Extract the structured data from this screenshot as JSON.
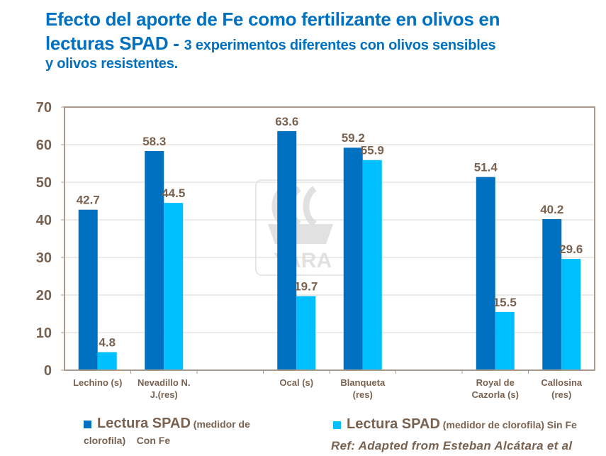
{
  "title": {
    "line1": "Efecto del aporte de Fe como fertilizante en olivos en",
    "line2_main": "lecturas SPAD - ",
    "line2_sub": "3 experimentos diferentes con olivos sensibles",
    "line3": "y olivos resistentes."
  },
  "watermark": "YARA",
  "chart_data": {
    "type": "bar",
    "title": "Efecto del aporte de Fe como fertilizante en olivos en lecturas SPAD - 3 experimentos diferentes con olivos sensibles y olivos resistentes.",
    "xlabel": "",
    "ylabel": "",
    "ylim": [
      0,
      70
    ],
    "yticks": [
      0,
      10,
      20,
      30,
      40,
      50,
      60,
      70
    ],
    "grid": true,
    "legend_position": "bottom",
    "categories": [
      "Lechino (s)",
      "Nevadillo N. J.(res)",
      "",
      "Ocal (s)",
      "Blanqueta (res)",
      "",
      "Royal de Cazorla (s)",
      "Callosina (res)"
    ],
    "category_lines": [
      [
        "Lechino (s)"
      ],
      [
        "Nevadillo N.",
        "J.(res)"
      ],
      [],
      [
        "Ocal (s)"
      ],
      [
        "Blanqueta",
        "(res)"
      ],
      [],
      [
        "Royal de",
        "Cazorla (s)"
      ],
      [
        "Callosina",
        "(res)"
      ]
    ],
    "series": [
      {
        "name": "Lectura SPAD (medidor de clorofila) Con Fe",
        "color": "#0070c0",
        "values": [
          42.7,
          58.3,
          null,
          63.6,
          59.2,
          null,
          51.4,
          40.2
        ]
      },
      {
        "name": "Lectura SPAD (medidor de clorofila) Sin Fe",
        "color": "#00bfff",
        "values": [
          4.8,
          44.5,
          null,
          19.7,
          55.9,
          null,
          15.5,
          29.6
        ]
      }
    ],
    "data_labels": [
      [
        "42.7",
        "58.3",
        "",
        "63.6",
        "59.2",
        "",
        "51.4",
        "40.2"
      ],
      [
        "4.8",
        "44.5",
        "",
        "19.7",
        "55.9",
        "",
        "15.5",
        "29.6"
      ]
    ]
  },
  "legend": [
    {
      "big": "Lectura SPAD",
      "small": " (medidor de",
      "small2": "clorofila)    Con Fe",
      "color": "#0070c0"
    },
    {
      "big": "Lectura SPAD",
      "small": " (medidor de clorofila) Sin Fe",
      "color": "#00bfff"
    }
  ],
  "reference": "Ref: Adapted from Esteban Alcátara et al"
}
